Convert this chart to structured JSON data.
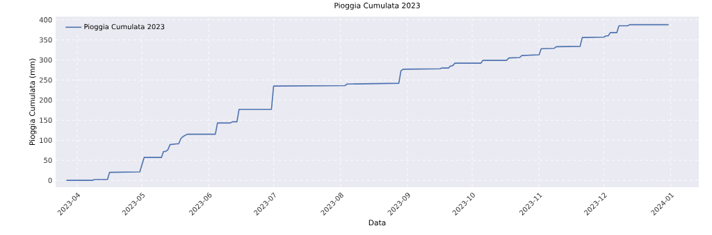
{
  "chart_data": {
    "type": "line",
    "title": "Pioggia Cumulata 2023",
    "xlabel": "Data",
    "ylabel": "Pioggia Cumulata (mm)",
    "x": [
      "2023-03-27",
      "2023-04-08",
      "2023-04-09",
      "2023-04-15",
      "2023-04-16",
      "2023-04-30",
      "2023-05-02",
      "2023-05-10",
      "2023-05-11",
      "2023-05-12",
      "2023-05-13",
      "2023-05-14",
      "2023-05-17",
      "2023-05-18",
      "2023-05-19",
      "2023-05-20",
      "2023-05-22",
      "2023-06-04",
      "2023-06-05",
      "2023-06-11",
      "2023-06-12",
      "2023-06-14",
      "2023-06-15",
      "2023-06-30",
      "2023-07-01",
      "2023-08-03",
      "2023-08-04",
      "2023-08-28",
      "2023-08-29",
      "2023-08-30",
      "2023-09-16",
      "2023-09-17",
      "2023-09-20",
      "2023-09-21",
      "2023-09-22",
      "2023-09-23",
      "2023-10-05",
      "2023-10-06",
      "2023-10-17",
      "2023-10-18",
      "2023-10-23",
      "2023-10-24",
      "2023-11-01",
      "2023-11-02",
      "2023-11-08",
      "2023-11-09",
      "2023-11-20",
      "2023-11-21",
      "2023-12-01",
      "2023-12-02",
      "2023-12-03",
      "2023-12-04",
      "2023-12-07",
      "2023-12-08",
      "2023-12-12",
      "2023-12-13",
      "2023-12-31"
    ],
    "series": [
      {
        "name": "Pioggia Cumulata 2023",
        "color": "#4c72b0",
        "values": [
          0,
          0,
          2,
          2,
          20,
          21,
          57,
          57,
          72,
          72,
          76,
          89,
          91,
          91,
          104,
          109,
          115,
          115,
          143,
          143,
          146,
          146,
          177,
          177,
          235,
          236,
          240,
          242,
          273,
          277,
          278,
          280,
          280,
          285,
          286,
          292,
          292,
          299,
          299,
          305,
          306,
          311,
          313,
          328,
          329,
          333,
          334,
          356,
          357,
          360,
          360,
          368,
          368,
          385,
          385,
          388,
          388
        ]
      }
    ],
    "xlim": [
      "2023-03-22",
      "2024-01-14"
    ],
    "xticks": [
      {
        "value": "2023-04-01",
        "label": "2023-04"
      },
      {
        "value": "2023-05-01",
        "label": "2023-05"
      },
      {
        "value": "2023-06-01",
        "label": "2023-06"
      },
      {
        "value": "2023-07-01",
        "label": "2023-07"
      },
      {
        "value": "2023-08-01",
        "label": "2023-08"
      },
      {
        "value": "2023-09-01",
        "label": "2023-09"
      },
      {
        "value": "2023-10-01",
        "label": "2023-10"
      },
      {
        "value": "2023-11-01",
        "label": "2023-11"
      },
      {
        "value": "2023-12-01",
        "label": "2023-12"
      },
      {
        "value": "2024-01-01",
        "label": "2024-01"
      }
    ],
    "ylim": [
      -17,
      408
    ],
    "yticks": [
      0,
      50,
      100,
      150,
      200,
      250,
      300,
      350,
      400
    ],
    "grid": true,
    "legend": "top left",
    "marker": "none",
    "line_style": "solid"
  }
}
